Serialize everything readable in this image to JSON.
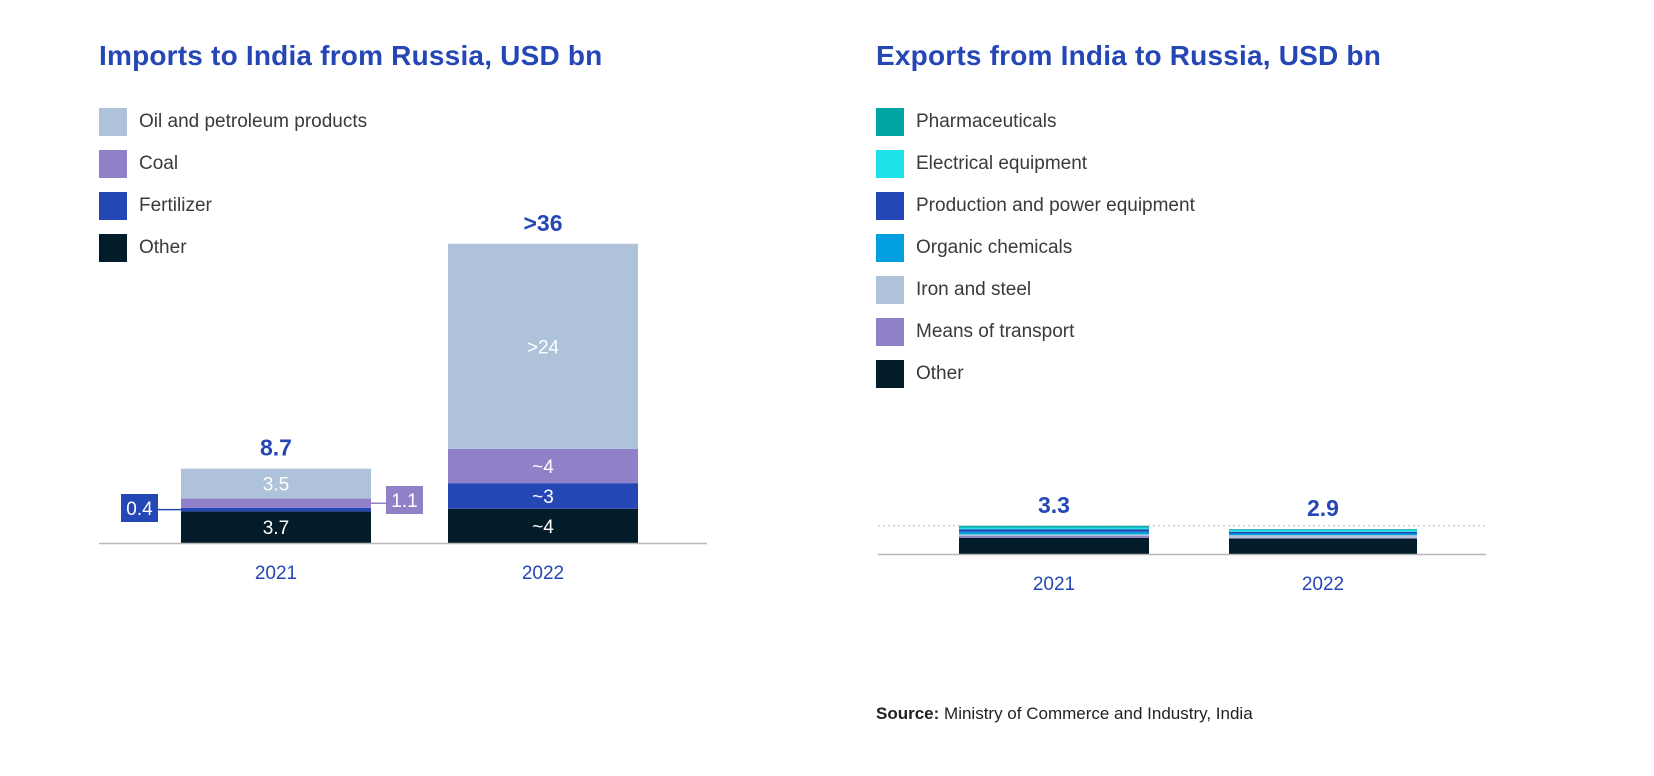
{
  "source": {
    "label": "Source:",
    "text": "Ministry of Commerce and Industry, India"
  },
  "colors": {
    "oil": "#aec3da",
    "coal": "#8f80c8",
    "fertilizer": "#2547b5",
    "other": "#031c29",
    "pharma": "#00a6a6",
    "electrical": "#1de3e8",
    "production": "#2547b5",
    "organic": "#00a0e0",
    "iron": "#aec3da",
    "transport": "#8f80c8"
  },
  "chart_data": [
    {
      "type": "bar",
      "stacked": true,
      "title": "Imports to India from Russia, USD bn",
      "categories": [
        "2021",
        "2022"
      ],
      "totals": [
        8.7,
        36
      ],
      "total_labels": [
        "8.7",
        ">36"
      ],
      "series": [
        {
          "name": "Other",
          "key": "other",
          "values": [
            3.7,
            4
          ],
          "labels": [
            "3.7",
            "~4"
          ]
        },
        {
          "name": "Fertilizer",
          "key": "fertilizer",
          "values": [
            0.4,
            3
          ],
          "labels": [
            "0.4",
            "~3"
          ]
        },
        {
          "name": "Coal",
          "key": "coal",
          "values": [
            1.1,
            4
          ],
          "labels": [
            "1.1",
            "~4"
          ]
        },
        {
          "name": "Oil and petroleum products",
          "key": "oil",
          "values": [
            3.5,
            24
          ],
          "labels": [
            "3.5",
            ">24"
          ]
        }
      ],
      "legend_order": [
        "Oil and petroleum products",
        "Coal",
        "Fertilizer",
        "Other"
      ],
      "ylim": [
        0,
        36
      ]
    },
    {
      "type": "bar",
      "stacked": true,
      "title": "Exports from India to Russia, USD bn",
      "categories": [
        "2021",
        "2022"
      ],
      "totals": [
        3.3,
        2.9
      ],
      "total_labels": [
        "3.3",
        "2.9"
      ],
      "series": [
        {
          "name": "Other",
          "key": "other",
          "values": [
            1.9,
            1.8
          ]
        },
        {
          "name": "Means of transport",
          "key": "transport",
          "values": [
            0.2,
            0.1
          ]
        },
        {
          "name": "Iron and steel",
          "key": "iron",
          "values": [
            0.2,
            0.3
          ]
        },
        {
          "name": "Organic chemicals",
          "key": "organic",
          "values": [
            0.3,
            0.2
          ]
        },
        {
          "name": "Production and power equipment",
          "key": "production",
          "values": [
            0.3,
            0.2
          ]
        },
        {
          "name": "Electrical equipment",
          "key": "electrical",
          "values": [
            0.2,
            0.2
          ]
        },
        {
          "name": "Pharmaceuticals",
          "key": "pharma",
          "values": [
            0.2,
            0.1
          ]
        }
      ],
      "legend_order": [
        "Pharmaceuticals",
        "Electrical equipment",
        "Production and power equipment",
        "Organic chemicals",
        "Iron and steel",
        "Means of transport",
        "Other"
      ],
      "ylim": [
        0,
        36
      ]
    }
  ]
}
